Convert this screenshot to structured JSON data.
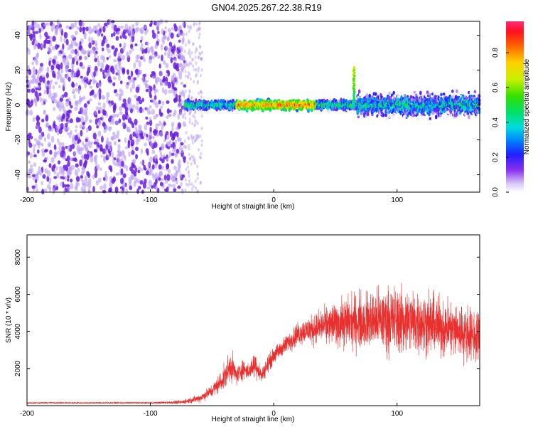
{
  "title": "GN04.2025.267.22.38.R19",
  "colors": {
    "snr_line": "#e8302e",
    "spectro_sparse": "#b79cf0",
    "spectro_dense": "#6a1fe0"
  },
  "chart_data": [
    {
      "type": "heatmap",
      "xlabel": "Height of straight line (km)",
      "ylabel": "Frequency (Hz)",
      "colorbar_label": "Normalized spectral amplitude",
      "xlim": [
        -200,
        167
      ],
      "ylim": [
        -50,
        48
      ],
      "x_ticks": [
        -200,
        -100,
        0,
        100
      ],
      "y_ticks": [
        -40,
        -20,
        0,
        20,
        40
      ],
      "colorbar_ticks": [
        0.0,
        0.2,
        0.4,
        0.6,
        0.8
      ],
      "colorbar_range": [
        0,
        0.98
      ],
      "noise_region": {
        "x_range": [
          -200,
          -72
        ],
        "freq_range": [
          -50,
          48
        ],
        "level": 0.15
      },
      "signal_band": {
        "x_range": [
          -72,
          167
        ],
        "center_freq": 0,
        "width_hz": 4
      },
      "spike": {
        "x": 65,
        "peak_freq": 22
      },
      "peak_amplitude_region": {
        "x_range": [
          -30,
          35
        ],
        "level": 0.95
      }
    },
    {
      "type": "line",
      "xlabel": "Height of straight line (km)",
      "ylabel": "SNR (10 * v/v)",
      "xlim": [
        -200,
        167
      ],
      "ylim": [
        0,
        9200
      ],
      "x_ticks": [
        -200,
        -100,
        0,
        100
      ],
      "y_ticks": [
        2000,
        4000,
        6000,
        8000
      ],
      "envelope": {
        "x": [
          -200,
          -100,
          -75,
          -60,
          -50,
          -40,
          -35,
          -30,
          -25,
          -20,
          -15,
          -10,
          -5,
          0,
          10,
          20,
          40,
          60,
          80,
          100,
          120,
          140,
          167
        ],
        "mean": [
          150,
          150,
          180,
          400,
          800,
          1500,
          2200,
          1600,
          2000,
          1800,
          2300,
          1600,
          2200,
          2700,
          3300,
          3900,
          4300,
          4500,
          4600,
          4600,
          4500,
          4200,
          3700
        ],
        "spread": [
          60,
          60,
          150,
          300,
          500,
          900,
          1200,
          700,
          800,
          500,
          1100,
          500,
          700,
          600,
          700,
          900,
          1300,
          2000,
          2300,
          2600,
          2400,
          2200,
          2000
        ]
      }
    }
  ]
}
